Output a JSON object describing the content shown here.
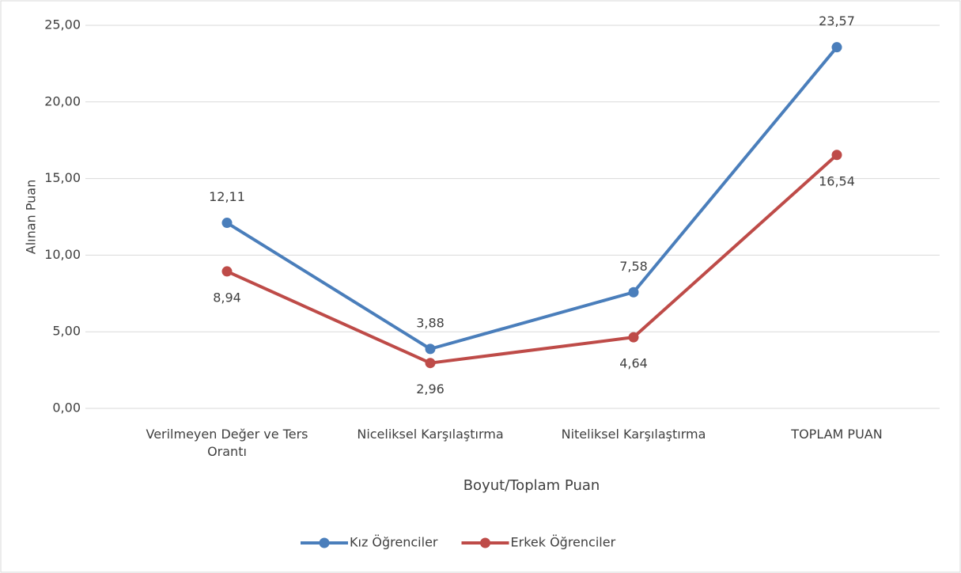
{
  "chart_data": {
    "type": "line",
    "x_label": "Boyut/Toplam Puan",
    "y_label": "Alınan Puan",
    "categories": [
      "Verilmeyen Değer ve Ters Orantı",
      "Niceliksel Karşılaştırma",
      "Niteliksel Karşılaştırma",
      "TOPLAM PUAN"
    ],
    "series": [
      {
        "name": "Kız Öğrenciler",
        "color": "#4a7ebb",
        "values": [
          12.11,
          3.88,
          7.58,
          23.57
        ],
        "value_labels": [
          "12,11",
          "3,88",
          "7,58",
          "23,57"
        ]
      },
      {
        "name": "Erkek Öğrenciler",
        "color": "#be4b48",
        "values": [
          8.94,
          2.96,
          4.64,
          16.54
        ],
        "value_labels": [
          "8,94",
          "2,96",
          "4,64",
          "16,54"
        ]
      }
    ],
    "ylim": [
      0,
      25
    ],
    "yticks": [
      {
        "value": 0,
        "label": "0,00"
      },
      {
        "value": 5,
        "label": "5,00"
      },
      {
        "value": 10,
        "label": "10,00"
      },
      {
        "value": 15,
        "label": "15,00"
      },
      {
        "value": 20,
        "label": "20,00"
      },
      {
        "value": 25,
        "label": "25,00"
      }
    ],
    "grid": true,
    "legend": "bottom"
  }
}
